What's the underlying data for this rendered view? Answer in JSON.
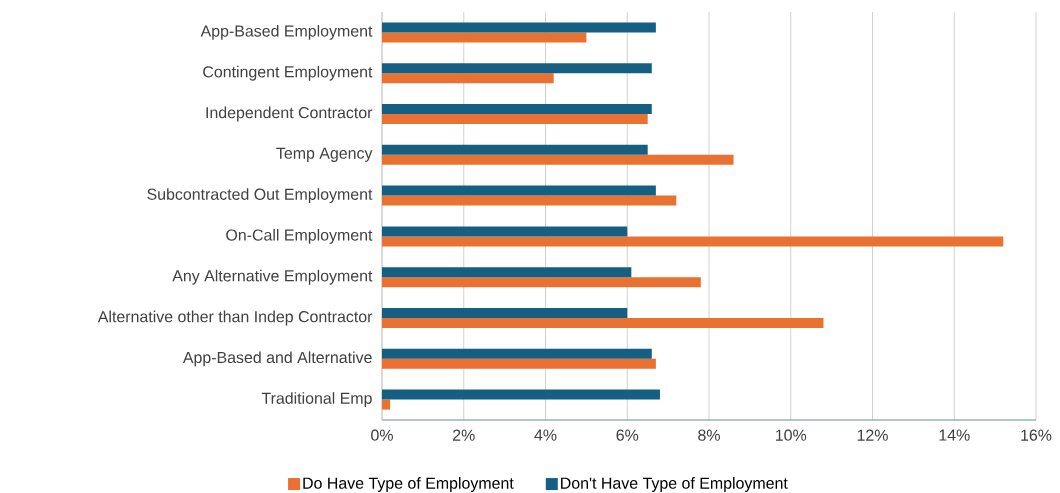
{
  "chart_data": {
    "type": "bar",
    "orientation": "horizontal",
    "categories": [
      "App-Based Employment",
      "Contingent Employment",
      "Independent Contractor",
      "Temp Agency",
      "Subcontracted Out Employment",
      "On-Call Employment",
      "Any Alternative Employment",
      "Alternative other than Indep Contractor",
      "App-Based and Alternative",
      "Traditional Emp"
    ],
    "series": [
      {
        "name": "Do Have Type of Employment",
        "color": "#e97132",
        "values": [
          5.0,
          4.2,
          6.5,
          8.6,
          7.2,
          15.2,
          7.8,
          10.8,
          6.7,
          0.2
        ]
      },
      {
        "name": "Don't Have Type of Employment",
        "color": "#156082",
        "values": [
          6.7,
          6.6,
          6.6,
          6.5,
          6.7,
          6.0,
          6.1,
          6.0,
          6.6,
          6.8
        ]
      }
    ],
    "xlim": [
      0,
      16
    ],
    "xticks": [
      {
        "value": 0,
        "label": "0%"
      },
      {
        "value": 2,
        "label": "2%"
      },
      {
        "value": 4,
        "label": "4%"
      },
      {
        "value": 6,
        "label": "6%"
      },
      {
        "value": 8,
        "label": "8%"
      },
      {
        "value": 10,
        "label": "10%"
      },
      {
        "value": 12,
        "label": "12%"
      },
      {
        "value": 14,
        "label": "14%"
      },
      {
        "value": 16,
        "label": "16%"
      }
    ],
    "grid": "x",
    "legend": "bottom"
  }
}
